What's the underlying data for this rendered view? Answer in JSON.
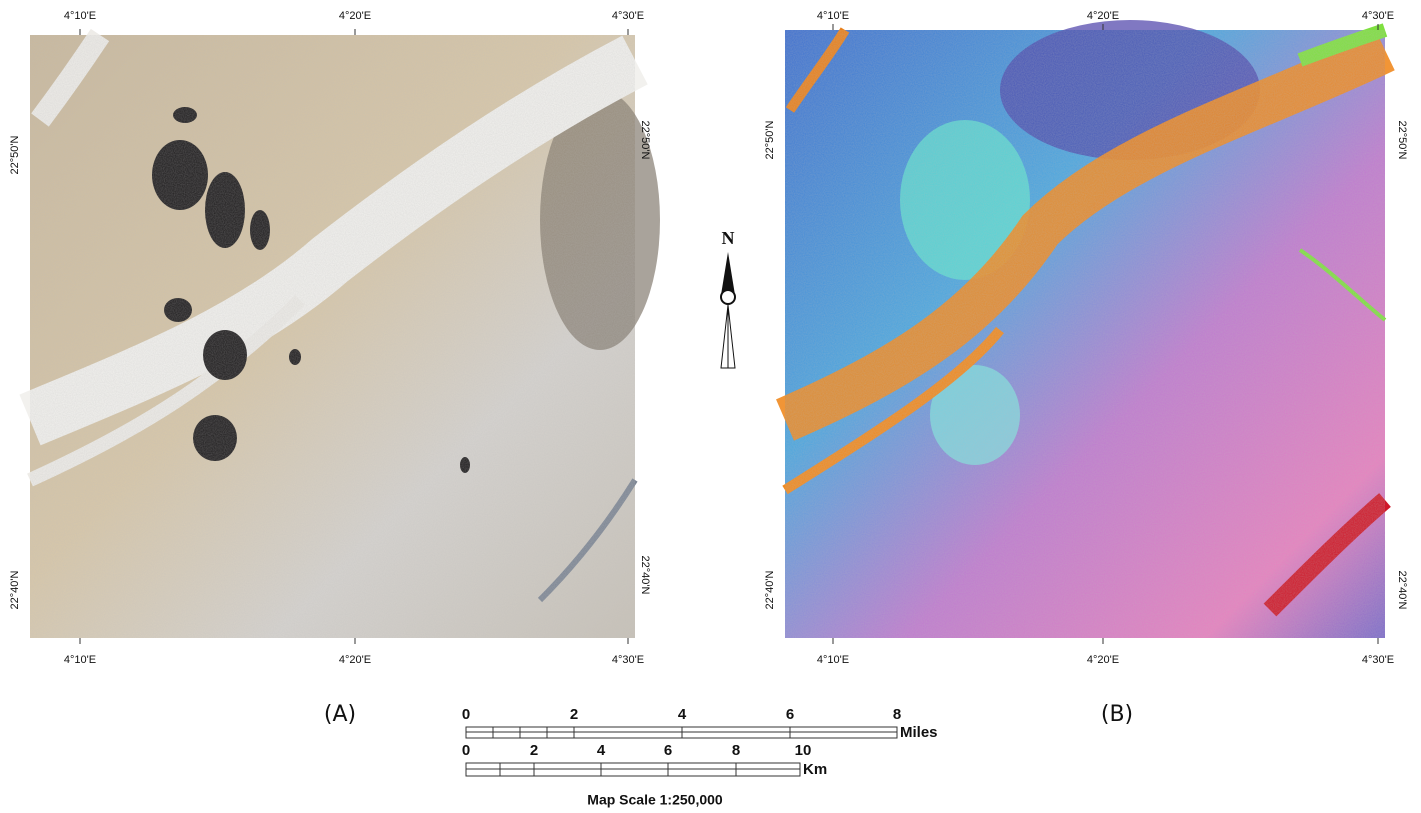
{
  "panels": [
    {
      "label": "(A)",
      "top_ticks": [
        "4°10'E",
        "4°20'E",
        "4°30'E"
      ],
      "bottom_ticks": [
        "4°10'E",
        "4°20'E",
        "4°30'E"
      ],
      "left_ticks": [
        "22°50'N",
        "22°40'N"
      ],
      "right_ticks": [
        "22°50'N",
        "22°40'N"
      ]
    },
    {
      "label": "(B)",
      "top_ticks": [
        "4°10'E",
        "4°20'E",
        "4°30'E"
      ],
      "bottom_ticks": [
        "4°10'E",
        "4°20'E",
        "4°30'E"
      ],
      "left_ticks": [
        "22°50'N",
        "22°40'N"
      ],
      "right_ticks": [
        "22°50'N",
        "22°40'N"
      ]
    }
  ],
  "north": "N",
  "scale_bar": {
    "miles_labels": [
      "0",
      "2",
      "4",
      "6",
      "8"
    ],
    "miles_unit": "Miles",
    "km_labels": [
      "0",
      "2",
      "4",
      "6",
      "8",
      "10"
    ],
    "km_unit": "Km",
    "caption": "Map Scale 1:250,000"
  }
}
